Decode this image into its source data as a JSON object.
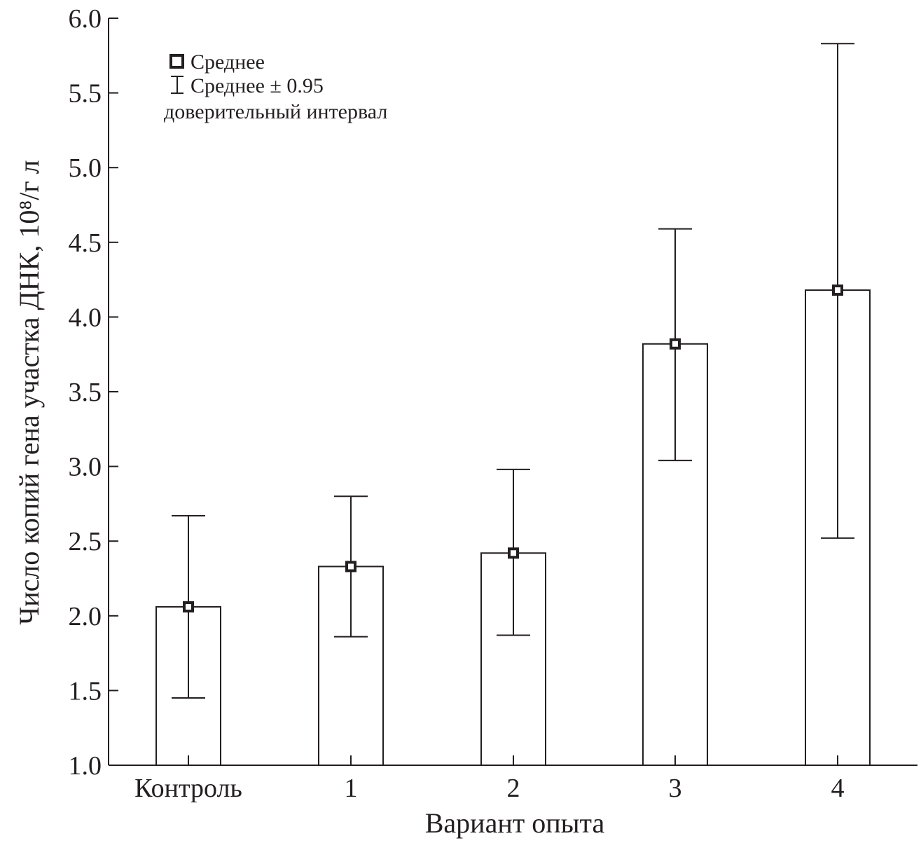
{
  "chart_data": {
    "type": "bar",
    "title": "",
    "xlabel": "Вариант опыта",
    "ylabel": "Число копий гена участка ДНК, 10⁸/г л",
    "ylim": [
      1.0,
      6.0
    ],
    "yticks": [
      "1.0",
      "1.5",
      "2.0",
      "2.5",
      "3.0",
      "3.5",
      "4.0",
      "4.5",
      "5.0",
      "5.5",
      "6.0"
    ],
    "ytick_values": [
      1.0,
      1.5,
      2.0,
      2.5,
      3.0,
      3.5,
      4.0,
      4.5,
      5.0,
      5.5,
      6.0
    ],
    "categories": [
      "Контроль",
      "1",
      "2",
      "3",
      "4"
    ],
    "values": [
      2.06,
      2.33,
      2.42,
      3.82,
      4.18
    ],
    "ci_low": [
      1.45,
      1.86,
      1.87,
      3.04,
      2.52
    ],
    "ci_high": [
      2.67,
      2.8,
      2.98,
      4.59,
      5.83
    ],
    "legend": {
      "position": "top-left",
      "mean_label": "Среднее",
      "ci_label": "Среднее ± 0.95",
      "ci_label_line2": "доверительный интервал"
    }
  },
  "colors": {
    "ink": "#231f20",
    "bar_fill": "#ffffff",
    "background": "#ffffff"
  }
}
